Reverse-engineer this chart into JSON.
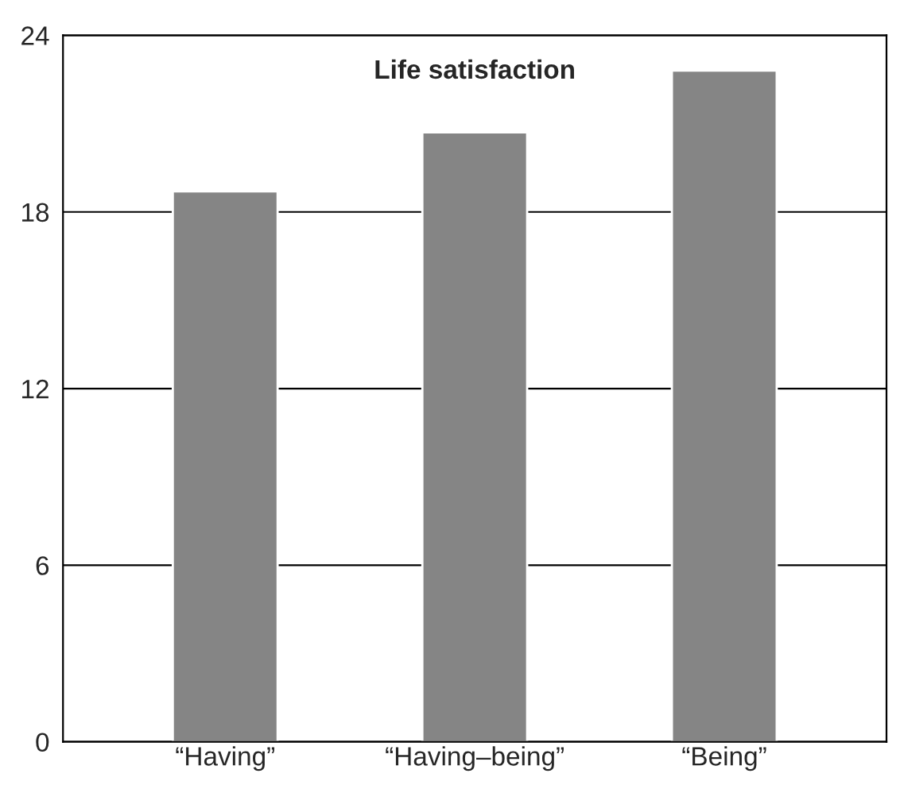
{
  "chart_data": {
    "type": "bar",
    "title": "Life satisfaction",
    "categories": [
      "“Having”",
      "“Having–being”",
      "“Being”"
    ],
    "values": [
      18.7,
      20.7,
      22.8
    ],
    "color": "#858585",
    "ylim": [
      0,
      24
    ],
    "yticks": [
      0,
      6,
      12,
      18,
      24
    ],
    "grid": "y"
  }
}
